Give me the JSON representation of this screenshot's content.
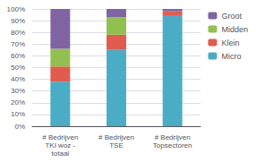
{
  "chart_data": {
    "type": "bar",
    "stacked": true,
    "categories": [
      "# Bedrijven\nTKI woz -\ntotaal",
      "# Bedrijven\nTSE",
      "# Bedrijven\nTopsectoren"
    ],
    "series": [
      {
        "name": "Micro",
        "color": "#4bacc6",
        "values": [
          38,
          65,
          94
        ]
      },
      {
        "name": "Klein",
        "color": "#e05c4e",
        "values": [
          13,
          13,
          4
        ]
      },
      {
        "name": "Midden",
        "color": "#92c050",
        "values": [
          15,
          15,
          0
        ]
      },
      {
        "name": "Groot",
        "color": "#8064a2",
        "values": [
          34,
          7,
          2
        ]
      }
    ],
    "ylim": [
      0,
      100
    ],
    "yticks": [
      {
        "value": 0,
        "label": "0%"
      },
      {
        "value": 10,
        "label": "10%"
      },
      {
        "value": 20,
        "label": "20%"
      },
      {
        "value": 30,
        "label": "30%"
      },
      {
        "value": 40,
        "label": "40%"
      },
      {
        "value": 50,
        "label": "50%"
      },
      {
        "value": 60,
        "label": "60%"
      },
      {
        "value": 70,
        "label": "70%"
      },
      {
        "value": 80,
        "label": "80%"
      },
      {
        "value": 90,
        "label": "90%"
      },
      {
        "value": 100,
        "label": "100%"
      }
    ],
    "grid": true,
    "legend": "right"
  }
}
